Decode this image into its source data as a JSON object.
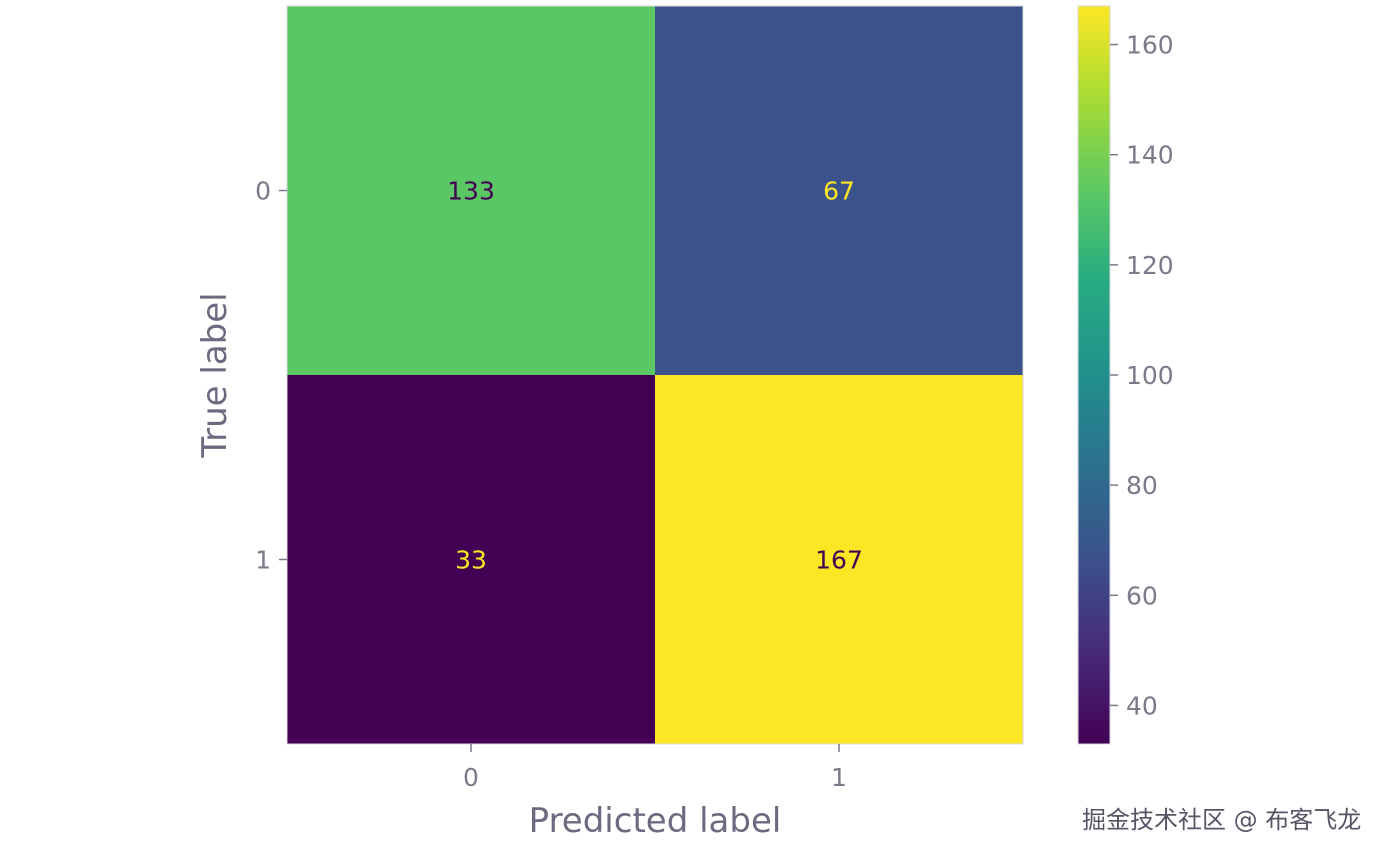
{
  "chart_data": {
    "type": "heatmap",
    "title": "",
    "xlabel": "Predicted label",
    "ylabel": "True label",
    "x_categories": [
      "0",
      "1"
    ],
    "y_categories": [
      "0",
      "1"
    ],
    "values": [
      [
        133,
        67
      ],
      [
        33,
        167
      ]
    ],
    "colormap": "viridis",
    "colorbar": {
      "min": 33,
      "max": 167,
      "ticks": [
        40,
        60,
        80,
        100,
        120,
        140,
        160
      ]
    },
    "grid": false,
    "text_colors": {
      "on_light": "#440154",
      "on_dark": "#fde725"
    }
  },
  "watermark": "掘金技术社区 @ 布客飞龙"
}
